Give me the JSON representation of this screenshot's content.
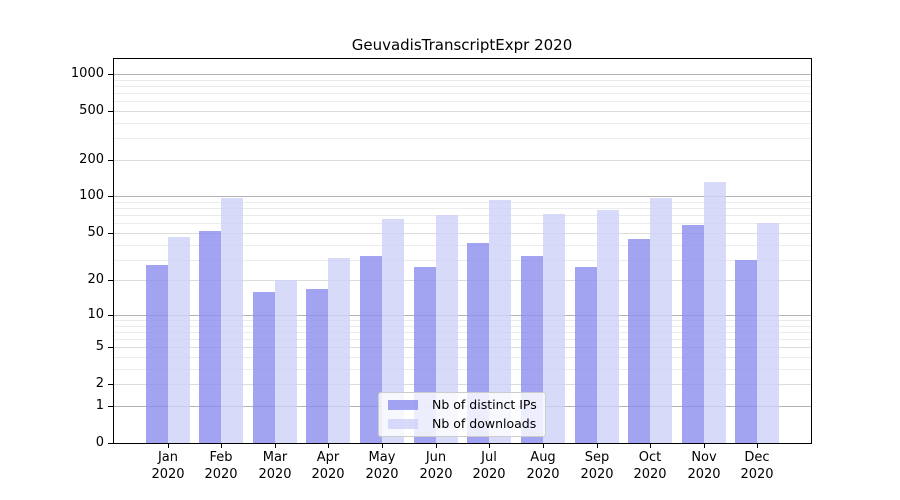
{
  "title": "GeuvadisTranscriptExpr 2020",
  "chart_data": {
    "type": "bar",
    "title": "GeuvadisTranscriptExpr 2020",
    "categories": [
      "Jan 2020",
      "Feb 2020",
      "Mar 2020",
      "Apr 2020",
      "May 2020",
      "Jun 2020",
      "Jul 2020",
      "Aug 2020",
      "Sep 2020",
      "Oct 2020",
      "Nov 2020",
      "Dec 2020"
    ],
    "series": [
      {
        "name": "Nb of distinct IPs",
        "color": "rgba(139,141,239,0.8)",
        "values": [
          27,
          52,
          16,
          17,
          32,
          26,
          41,
          32,
          26,
          45,
          58,
          30
        ]
      },
      {
        "name": "Nb of downloads",
        "color": "rgba(206,209,249,0.8)",
        "values": [
          46,
          97,
          20,
          31,
          65,
          70,
          94,
          72,
          77,
          98,
          131,
          61
        ]
      }
    ],
    "xlabel": "",
    "ylabel": "",
    "yscale": "log1p",
    "ylim": [
      0,
      1320
    ],
    "yticks_labeled": [
      0,
      1,
      2,
      5,
      10,
      20,
      50,
      100,
      200,
      500,
      1000
    ],
    "grid_major": [
      1,
      10,
      100,
      1000
    ],
    "grid_sub": [
      2,
      5,
      20,
      50,
      200,
      500
    ],
    "grid_minor": [
      3,
      4,
      6,
      7,
      8,
      9,
      30,
      40,
      60,
      70,
      80,
      90,
      300,
      400,
      600,
      700,
      800,
      900
    ],
    "grid": "both",
    "legend_position": "lower center"
  },
  "legend": {
    "items": [
      "Nb of distinct IPs",
      "Nb of downloads"
    ]
  }
}
